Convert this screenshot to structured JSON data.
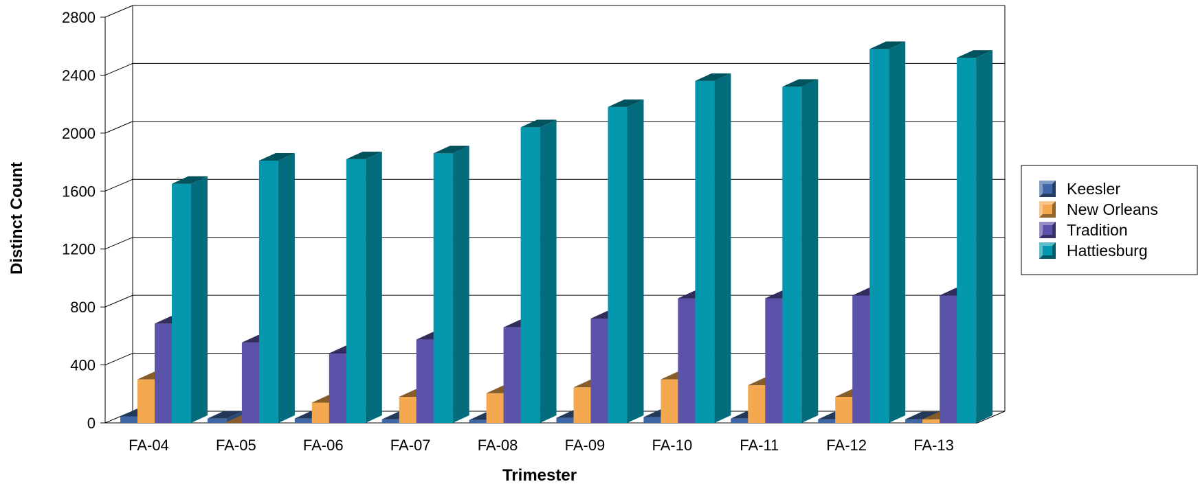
{
  "chart_data": {
    "type": "bar",
    "categories": [
      "FA-04",
      "FA-05",
      "FA-06",
      "FA-07",
      "FA-08",
      "FA-09",
      "FA-10",
      "FA-11",
      "FA-12",
      "FA-13"
    ],
    "series": [
      {
        "name": "Keesler",
        "values": [
          45,
          30,
          30,
          25,
          20,
          35,
          40,
          30,
          25,
          25
        ]
      },
      {
        "name": "New Orleans",
        "values": [
          300,
          0,
          140,
          180,
          205,
          245,
          300,
          260,
          180,
          25
        ]
      },
      {
        "name": "Tradition",
        "values": [
          685,
          555,
          480,
          575,
          660,
          720,
          860,
          860,
          880,
          880
        ]
      },
      {
        "name": "Hattiesburg",
        "values": [
          1650,
          1810,
          1820,
          1860,
          2040,
          2180,
          2360,
          2320,
          2580,
          2520
        ]
      }
    ],
    "colors": {
      "Keesler": "#3f67a6",
      "New Orleans": "#f4a84f",
      "Tradition": "#5b52a9",
      "Hattiesburg": "#0597ad"
    },
    "xlabel": "Trimester",
    "ylabel": "Distinct Count",
    "ylim": [
      0,
      2800
    ],
    "yticks": [
      "0",
      "400",
      "800",
      "1200",
      "1600",
      "2000",
      "2400",
      "2800"
    ],
    "grid": true,
    "legend_position": "right"
  }
}
